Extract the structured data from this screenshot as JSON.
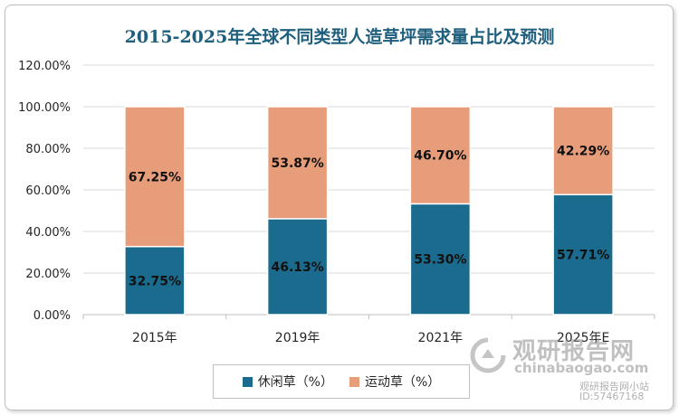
{
  "chart_data": {
    "type": "bar",
    "stacked": true,
    "title": "2015-2025年全球不同类型人造草坪需求量占比及预测",
    "categories": [
      "2015年",
      "2019年",
      "2021年",
      "2025年E"
    ],
    "series": [
      {
        "name": "休闲草（%）",
        "color": "#1a6b8e",
        "values": [
          32.75,
          46.13,
          53.3,
          57.71
        ],
        "labels": [
          "32.75%",
          "46.13%",
          "53.30%",
          "57.71%"
        ]
      },
      {
        "name": "运动草（%）",
        "color": "#e89d7a",
        "values": [
          67.25,
          53.87,
          46.7,
          42.29
        ],
        "labels": [
          "67.25%",
          "53.87%",
          "46.70%",
          "42.29%"
        ]
      }
    ],
    "yticks": [
      "0.00%",
      "20.00%",
      "40.00%",
      "60.00%",
      "80.00%",
      "100.00%",
      "120.00%"
    ],
    "ylim": [
      0,
      120
    ],
    "grid": true,
    "legend": "bottom"
  },
  "watermark": {
    "name": "观研报告网",
    "url": "chinabaogao.com",
    "small": "观研报告网小站",
    "id": "ID:57467168"
  }
}
